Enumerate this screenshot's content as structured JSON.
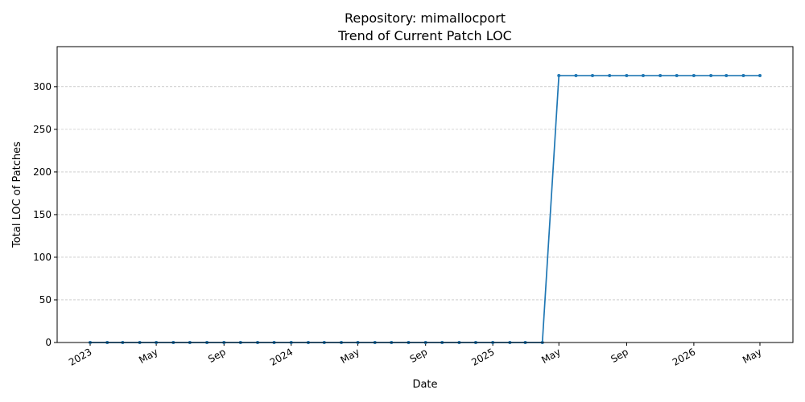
{
  "chart_data": {
    "type": "line",
    "title": "Repository: mimallocport",
    "subtitle": "Trend of Current Patch LOC",
    "xlabel": "Date",
    "ylabel": "Total LOC of Patches",
    "ylim": [
      0,
      347
    ],
    "y_ticks": [
      0,
      50,
      100,
      150,
      200,
      250,
      300
    ],
    "grid": "horizontal dashed",
    "x_ticks": [
      {
        "date": "2023-01-01",
        "label": "2023"
      },
      {
        "date": "2023-05-01",
        "label": "May"
      },
      {
        "date": "2023-09-01",
        "label": "Sep"
      },
      {
        "date": "2024-01-01",
        "label": "2024"
      },
      {
        "date": "2024-05-01",
        "label": "May"
      },
      {
        "date": "2024-09-01",
        "label": "Sep"
      },
      {
        "date": "2025-01-01",
        "label": "2025"
      },
      {
        "date": "2025-05-01",
        "label": "May"
      },
      {
        "date": "2025-09-01",
        "label": "Sep"
      },
      {
        "date": "2026-01-01",
        "label": "2026"
      },
      {
        "date": "2026-05-01",
        "label": "May"
      }
    ],
    "series": [
      {
        "color": "#1f77b4",
        "points": [
          {
            "x": "2023-01-01",
            "y": 0
          },
          {
            "x": "2023-02-01",
            "y": 0
          },
          {
            "x": "2023-03-01",
            "y": 0
          },
          {
            "x": "2023-04-01",
            "y": 0
          },
          {
            "x": "2023-05-01",
            "y": 0
          },
          {
            "x": "2023-06-01",
            "y": 0
          },
          {
            "x": "2023-07-01",
            "y": 0
          },
          {
            "x": "2023-08-01",
            "y": 0
          },
          {
            "x": "2023-09-01",
            "y": 0
          },
          {
            "x": "2023-10-01",
            "y": 0
          },
          {
            "x": "2023-11-01",
            "y": 0
          },
          {
            "x": "2023-12-01",
            "y": 0
          },
          {
            "x": "2024-01-01",
            "y": 0
          },
          {
            "x": "2024-02-01",
            "y": 0
          },
          {
            "x": "2024-03-01",
            "y": 0
          },
          {
            "x": "2024-04-01",
            "y": 0
          },
          {
            "x": "2024-05-01",
            "y": 0
          },
          {
            "x": "2024-06-01",
            "y": 0
          },
          {
            "x": "2024-07-01",
            "y": 0
          },
          {
            "x": "2024-08-01",
            "y": 0
          },
          {
            "x": "2024-09-01",
            "y": 0
          },
          {
            "x": "2024-10-01",
            "y": 0
          },
          {
            "x": "2024-11-01",
            "y": 0
          },
          {
            "x": "2024-12-01",
            "y": 0
          },
          {
            "x": "2025-01-01",
            "y": 0
          },
          {
            "x": "2025-02-01",
            "y": 0
          },
          {
            "x": "2025-03-01",
            "y": 0
          },
          {
            "x": "2025-04-01",
            "y": 0
          },
          {
            "x": "2025-05-01",
            "y": 313
          },
          {
            "x": "2025-06-01",
            "y": 313
          },
          {
            "x": "2025-07-01",
            "y": 313
          },
          {
            "x": "2025-08-01",
            "y": 313
          },
          {
            "x": "2025-09-01",
            "y": 313
          },
          {
            "x": "2025-10-01",
            "y": 313
          },
          {
            "x": "2025-11-01",
            "y": 313
          },
          {
            "x": "2025-12-01",
            "y": 313
          },
          {
            "x": "2026-01-01",
            "y": 313
          },
          {
            "x": "2026-02-01",
            "y": 313
          },
          {
            "x": "2026-03-01",
            "y": 313
          },
          {
            "x": "2026-04-01",
            "y": 313
          },
          {
            "x": "2026-05-01",
            "y": 313
          }
        ]
      }
    ]
  }
}
